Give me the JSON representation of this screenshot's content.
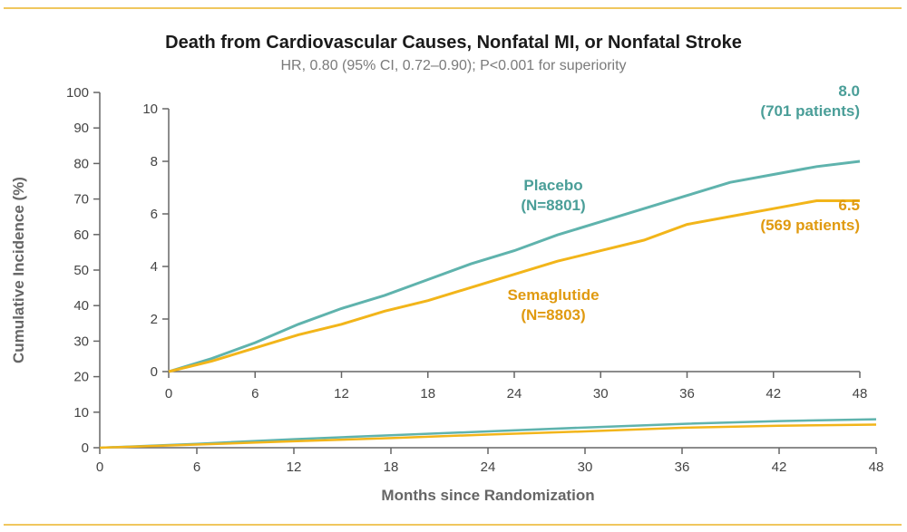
{
  "chart_data": [
    {
      "type": "line",
      "panel": "main",
      "title": "Death from Cardiovascular Causes, Nonfatal MI, or Nonfatal Stroke",
      "subtitle": "HR, 0.80 (95% CI, 0.72–0.90); P<0.001 for superiority",
      "xlabel": "Months since Randomization",
      "ylabel": "Cumulative Incidence (%)",
      "xlim": [
        0,
        48
      ],
      "ylim": [
        0,
        100
      ],
      "xticks": [
        "0",
        "6",
        "12",
        "18",
        "24",
        "30",
        "36",
        "42",
        "48"
      ],
      "yticks": [
        "0",
        "10",
        "20",
        "30",
        "40",
        "50",
        "60",
        "70",
        "80",
        "90",
        "100"
      ],
      "grid": false,
      "series": [
        {
          "name": "Placebo",
          "color": "#5fb3ad",
          "x": [
            0,
            6,
            12,
            18,
            24,
            30,
            36,
            42,
            48
          ],
          "y": [
            0,
            1.1,
            2.4,
            3.5,
            4.6,
            5.7,
            6.7,
            7.5,
            8.0
          ]
        },
        {
          "name": "Semaglutide",
          "color": "#f2b51a",
          "x": [
            0,
            6,
            12,
            18,
            24,
            30,
            36,
            42,
            48
          ],
          "y": [
            0,
            0.9,
            1.8,
            2.7,
            3.7,
            4.6,
            5.6,
            6.2,
            6.5
          ]
        }
      ]
    },
    {
      "type": "line",
      "panel": "inset",
      "xlim": [
        0,
        48
      ],
      "ylim": [
        0,
        10
      ],
      "xticks": [
        "0",
        "6",
        "12",
        "18",
        "24",
        "30",
        "36",
        "42",
        "48"
      ],
      "yticks": [
        "0",
        "2",
        "4",
        "6",
        "8",
        "10"
      ],
      "series": [
        {
          "name": "Placebo",
          "label": "Placebo",
          "n_label": "(N=8801)",
          "color": "#5fb3ad",
          "end_value": "8.0",
          "end_note": "(701 patients)",
          "x": [
            0,
            3,
            6,
            9,
            12,
            15,
            18,
            21,
            24,
            27,
            30,
            33,
            36,
            39,
            42,
            45,
            48
          ],
          "y": [
            0,
            0.5,
            1.1,
            1.8,
            2.4,
            2.9,
            3.5,
            4.1,
            4.6,
            5.2,
            5.7,
            6.2,
            6.7,
            7.2,
            7.5,
            7.8,
            8.0
          ]
        },
        {
          "name": "Semaglutide",
          "label": "Semaglutide",
          "n_label": "(N=8803)",
          "color": "#f2b51a",
          "end_value": "6.5",
          "end_note": "(569 patients)",
          "x": [
            0,
            3,
            6,
            9,
            12,
            15,
            18,
            21,
            24,
            27,
            30,
            33,
            36,
            39,
            42,
            45,
            48
          ],
          "y": [
            0,
            0.4,
            0.9,
            1.4,
            1.8,
            2.3,
            2.7,
            3.2,
            3.7,
            4.2,
            4.6,
            5.0,
            5.6,
            5.9,
            6.2,
            6.5,
            6.5
          ]
        }
      ]
    }
  ]
}
